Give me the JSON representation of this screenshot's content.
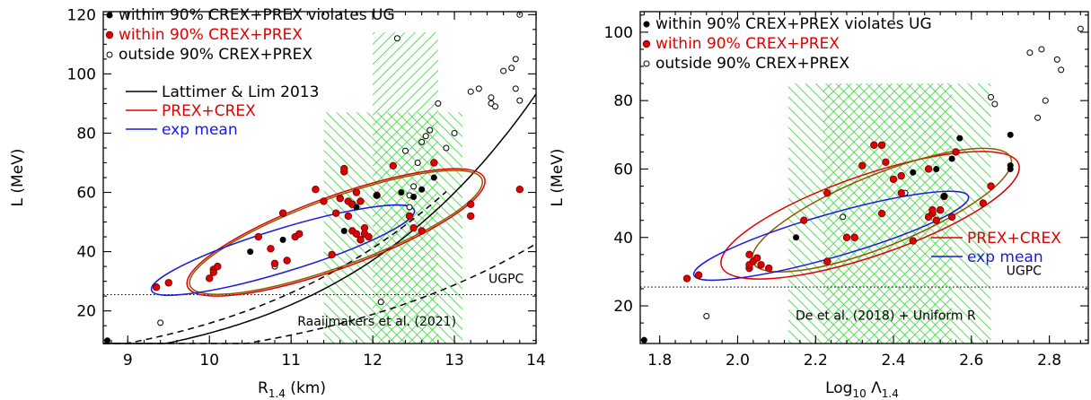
{
  "colors": {
    "hatch": "#33d633",
    "red": "#e00000",
    "blue": "#1a1ae0",
    "olive": "#8a5a00",
    "black": "#000000"
  },
  "chart_data": [
    {
      "id": "left",
      "type": "scatter",
      "xlabel": "R",
      "xlabel_sub": "1.4",
      "xlabel_unit": " (km)",
      "ylabel": "L (MeV)",
      "xlim": [
        8.7,
        14.0
      ],
      "ylim": [
        9,
        121
      ],
      "xticks": [
        9,
        10,
        11,
        12,
        13,
        14
      ],
      "yticks": [
        20,
        40,
        60,
        80,
        100,
        120
      ],
      "legend_markers": [
        {
          "label": "within 90% CREX+PREX violates UG",
          "style": "black",
          "text_color": "#000000"
        },
        {
          "label": "within 90% CREX+PREX",
          "style": "red",
          "text_color": "#e00000"
        },
        {
          "label": "outside 90% CREX+PREX",
          "style": "open",
          "text_color": "#000000"
        }
      ],
      "legend_lines": [
        {
          "label": "Lattimer & Lim 2013",
          "color": "#000000"
        },
        {
          "label": "PREX+CREX",
          "color": "#e00000"
        },
        {
          "label": "exp mean",
          "color": "#1a1ae0"
        }
      ],
      "hatch_regions": [
        {
          "x": [
            11.4,
            13.1
          ],
          "y": [
            9,
            87
          ]
        },
        {
          "x": [
            12.0,
            12.8
          ],
          "y": [
            9,
            114
          ]
        }
      ],
      "ugpc_y": 25.5,
      "ugpc_label": "UGPC",
      "ugpc_label_pos": [
        13.85,
        29.5
      ],
      "annotation": "Raaijmakers et al. (2021)",
      "annotation_pos": [
        12.05,
        15
      ],
      "curves": [
        {
          "style": "solid",
          "a": 1.34e-05,
          "p": 5.97,
          "xr": [
            8.7,
            14.0
          ]
        },
        {
          "style": "dashed",
          "a": 8.9e-05,
          "p": 5.25,
          "xr": [
            8.7,
            12.9
          ]
        },
        {
          "style": "dashed",
          "a": 3.5e-05,
          "p": 5.31,
          "xr": [
            8.7,
            14.0
          ]
        }
      ],
      "ellipses": [
        {
          "name": "PREX+CREX",
          "color": "#e00000",
          "cx": 11.55,
          "cy": 46.5,
          "rx_px": 176,
          "ry_px": 40,
          "angle_deg": -20
        },
        {
          "name": "olive",
          "color": "#8a5a00",
          "cx": 11.55,
          "cy": 46.5,
          "rx_px": 173,
          "ry_px": 38,
          "angle_deg": -20
        },
        {
          "name": "exp mean",
          "color": "#1a1ae0",
          "cx": 10.9,
          "cy": 40.5,
          "rx_px": 153,
          "ry_px": 24,
          "angle_deg": -17
        }
      ],
      "points_black": [
        [
          10.5,
          40
        ],
        [
          10.9,
          44
        ],
        [
          11.65,
          47
        ],
        [
          12.05,
          59
        ],
        [
          12.5,
          58.5
        ],
        [
          12.75,
          65
        ],
        [
          12.6,
          61
        ],
        [
          11.8,
          55
        ],
        [
          8.75,
          10
        ],
        [
          12.35,
          60
        ]
      ],
      "points_red": [
        [
          9.35,
          28
        ],
        [
          9.5,
          29.5
        ],
        [
          10.0,
          31
        ],
        [
          10.05,
          34
        ],
        [
          10.05,
          33
        ],
        [
          10.1,
          35
        ],
        [
          10.6,
          45
        ],
        [
          10.75,
          41
        ],
        [
          10.8,
          36
        ],
        [
          10.95,
          37
        ],
        [
          10.9,
          53
        ],
        [
          11.05,
          45
        ],
        [
          11.1,
          46
        ],
        [
          11.3,
          61
        ],
        [
          11.4,
          57
        ],
        [
          11.65,
          67
        ],
        [
          11.65,
          68
        ],
        [
          11.6,
          58
        ],
        [
          11.7,
          57
        ],
        [
          11.75,
          56
        ],
        [
          11.7,
          52
        ],
        [
          11.75,
          47
        ],
        [
          11.8,
          46
        ],
        [
          11.85,
          44
        ],
        [
          11.9,
          48
        ],
        [
          11.9,
          46
        ],
        [
          11.95,
          45
        ],
        [
          11.8,
          60
        ],
        [
          11.55,
          53
        ],
        [
          12.25,
          69
        ],
        [
          12.45,
          52
        ],
        [
          12.6,
          47
        ],
        [
          12.75,
          70
        ],
        [
          12.5,
          48
        ],
        [
          12.05,
          59
        ],
        [
          13.2,
          56
        ],
        [
          13.2,
          52
        ],
        [
          13.8,
          61
        ],
        [
          11.5,
          39
        ],
        [
          11.85,
          57
        ]
      ],
      "points_open": [
        [
          9.4,
          16
        ],
        [
          10.8,
          35
        ],
        [
          11.1,
          46
        ],
        [
          11.8,
          60
        ],
        [
          12.1,
          23
        ],
        [
          12.3,
          112
        ],
        [
          12.4,
          74
        ],
        [
          12.55,
          70
        ],
        [
          12.6,
          77
        ],
        [
          12.65,
          79
        ],
        [
          12.7,
          81
        ],
        [
          12.8,
          90
        ],
        [
          12.9,
          75
        ],
        [
          13.0,
          80
        ],
        [
          13.2,
          94
        ],
        [
          13.3,
          95
        ],
        [
          13.45,
          90
        ],
        [
          13.45,
          92
        ],
        [
          13.5,
          89
        ],
        [
          13.6,
          101
        ],
        [
          13.7,
          102
        ],
        [
          13.75,
          105
        ],
        [
          13.8,
          120
        ],
        [
          13.8,
          91
        ],
        [
          13.75,
          95
        ],
        [
          12.45,
          59
        ],
        [
          12.5,
          62
        ],
        [
          12.45,
          55
        ]
      ]
    },
    {
      "id": "right",
      "type": "scatter",
      "xlabel": "Log",
      "xlabel_sub": "10",
      "xlabel_mid": " Λ",
      "xlabel_sub2": "1.4",
      "ylabel": "L (MeV)",
      "xlim": [
        1.75,
        2.9
      ],
      "ylim": [
        9,
        106
      ],
      "xticks": [
        1.8,
        2.0,
        2.2,
        2.4,
        2.6,
        2.8
      ],
      "yticks": [
        20,
        40,
        60,
        80,
        100
      ],
      "legend_markers": [
        {
          "label": "within 90% CREX+PREX violates UG",
          "style": "black",
          "text_color": "#000000"
        },
        {
          "label": "within 90% CREX+PREX",
          "style": "red",
          "text_color": "#e00000"
        },
        {
          "label": "outside 90% CREX+PREX",
          "style": "open",
          "text_color": "#000000"
        }
      ],
      "legend_lines": [
        {
          "label": "PREX+CREX",
          "color": "#e00000"
        },
        {
          "label": "exp  mean",
          "color": "#1a1ae0"
        }
      ],
      "hatch_regions": [
        {
          "x": [
            2.13,
            2.65
          ],
          "y": [
            9,
            85
          ]
        },
        {
          "x": [
            2.22,
            2.55
          ],
          "y": [
            9,
            85
          ]
        }
      ],
      "ugpc_y": 25.5,
      "ugpc_label": "UGPC",
      "ugpc_label_pos": [
        2.78,
        29
      ],
      "annotation": "De et al. (2018) + Uniform R",
      "annotation_pos": [
        2.38,
        16
      ],
      "curves": [],
      "ellipses": [
        {
          "name": "PREX+CREX",
          "color": "#e00000",
          "cx": 2.34,
          "cy": 46.5,
          "rx_px": 175,
          "ry_px": 45,
          "angle_deg": -19
        },
        {
          "name": "olive",
          "color": "#8a5a00",
          "cx": 2.37,
          "cy": 48,
          "rx_px": 155,
          "ry_px": 40,
          "angle_deg": -22
        },
        {
          "name": "exp mean",
          "color": "#1a1ae0",
          "cx": 2.24,
          "cy": 40.5,
          "rx_px": 159,
          "ry_px": 24,
          "angle_deg": -16
        }
      ],
      "points_black": [
        [
          1.76,
          10
        ],
        [
          2.15,
          40
        ],
        [
          2.45,
          59
        ],
        [
          2.51,
          60
        ],
        [
          2.53,
          52
        ],
        [
          2.57,
          69
        ],
        [
          2.7,
          70
        ],
        [
          2.7,
          60
        ],
        [
          2.7,
          61
        ],
        [
          2.55,
          63
        ]
      ],
      "points_red": [
        [
          1.87,
          28
        ],
        [
          1.9,
          29
        ],
        [
          2.03,
          31
        ],
        [
          2.03,
          32
        ],
        [
          2.04,
          33
        ],
        [
          2.03,
          35
        ],
        [
          2.05,
          34
        ],
        [
          2.06,
          32
        ],
        [
          2.08,
          31
        ],
        [
          2.17,
          45
        ],
        [
          2.23,
          53
        ],
        [
          2.23,
          33
        ],
        [
          2.28,
          40
        ],
        [
          2.3,
          40
        ],
        [
          2.32,
          61
        ],
        [
          2.35,
          67
        ],
        [
          2.37,
          67
        ],
        [
          2.38,
          62
        ],
        [
          2.37,
          47
        ],
        [
          2.4,
          57
        ],
        [
          2.42,
          58
        ],
        [
          2.42,
          53
        ],
        [
          2.45,
          39
        ],
        [
          2.49,
          60
        ],
        [
          2.49,
          46
        ],
        [
          2.5,
          47
        ],
        [
          2.5,
          48
        ],
        [
          2.51,
          45
        ],
        [
          2.52,
          48
        ],
        [
          2.53,
          52
        ],
        [
          2.56,
          65
        ],
        [
          2.63,
          50
        ],
        [
          2.65,
          55
        ],
        [
          2.55,
          46
        ]
      ],
      "points_open": [
        [
          1.92,
          17
        ],
        [
          2.27,
          46
        ],
        [
          2.43,
          53
        ],
        [
          2.65,
          81
        ],
        [
          2.66,
          79
        ],
        [
          2.75,
          94
        ],
        [
          2.77,
          75
        ],
        [
          2.78,
          95
        ],
        [
          2.79,
          80
        ],
        [
          2.82,
          92
        ],
        [
          2.83,
          89
        ],
        [
          2.88,
          101
        ]
      ]
    }
  ]
}
